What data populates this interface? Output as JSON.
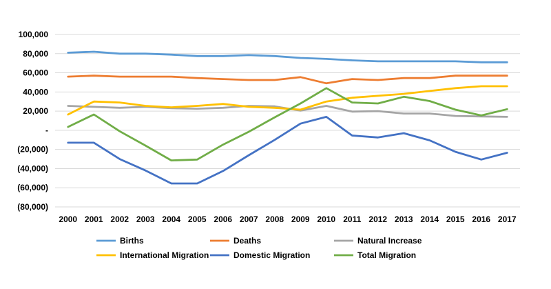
{
  "chart_data": {
    "type": "line",
    "title": "",
    "xlabel": "",
    "ylabel": "",
    "ylim": [
      -80000,
      100000
    ],
    "grid": true,
    "legend_position": "bottom",
    "y_ticks": [
      {
        "value": 100000,
        "label": "100,000"
      },
      {
        "value": 80000,
        "label": "80,000"
      },
      {
        "value": 60000,
        "label": "60,000"
      },
      {
        "value": 40000,
        "label": "40,000"
      },
      {
        "value": 20000,
        "label": "20,000"
      },
      {
        "value": 0,
        "label": "-"
      },
      {
        "value": -20000,
        "label": "(20,000)"
      },
      {
        "value": -40000,
        "label": "(40,000)"
      },
      {
        "value": -60000,
        "label": "(60,000)"
      },
      {
        "value": -80000,
        "label": "(80,000)"
      }
    ],
    "categories": [
      "2000",
      "2001",
      "2002",
      "2003",
      "2004",
      "2005",
      "2006",
      "2007",
      "2008",
      "2009",
      "2010",
      "2011",
      "2012",
      "2013",
      "2014",
      "2015",
      "2016",
      "2017"
    ],
    "series": [
      {
        "name": "Births",
        "color": "#5B9BD5",
        "values": [
          81000,
          82000,
          80000,
          80000,
          79000,
          77500,
          77500,
          78500,
          77500,
          75500,
          74500,
          73000,
          72000,
          72000,
          72000,
          72000,
          71000,
          71000
        ]
      },
      {
        "name": "Deaths",
        "color": "#ED7D31",
        "values": [
          56000,
          57000,
          56000,
          56000,
          56000,
          54500,
          53500,
          52500,
          52500,
          55500,
          49000,
          53500,
          52500,
          54500,
          54500,
          57000,
          57000,
          57000
        ]
      },
      {
        "name": "Natural Increase",
        "color": "#A5A5A5",
        "values": [
          25500,
          24500,
          23500,
          24500,
          23000,
          22500,
          23500,
          25500,
          25000,
          20500,
          25500,
          19500,
          20000,
          17500,
          17500,
          15000,
          14500,
          14000
        ]
      },
      {
        "name": "International Migration",
        "color": "#FFC000",
        "values": [
          16500,
          30000,
          29000,
          25500,
          24000,
          25500,
          27500,
          24500,
          23500,
          21500,
          30000,
          34000,
          36000,
          38000,
          41000,
          44000,
          46000,
          46000
        ]
      },
      {
        "name": "Domestic Migration",
        "color": "#4472C4",
        "values": [
          -13000,
          -13000,
          -30000,
          -42000,
          -55500,
          -55500,
          -42500,
          -26000,
          -10000,
          7000,
          14000,
          -5500,
          -7500,
          -3000,
          -10500,
          -22500,
          -30500,
          -23500
        ]
      },
      {
        "name": "Total Migration",
        "color": "#70AD47",
        "values": [
          3500,
          16500,
          -1000,
          -16000,
          -31500,
          -30500,
          -15000,
          -1500,
          13500,
          28000,
          44000,
          29000,
          28000,
          35000,
          30500,
          21500,
          15500,
          22000
        ]
      }
    ]
  }
}
